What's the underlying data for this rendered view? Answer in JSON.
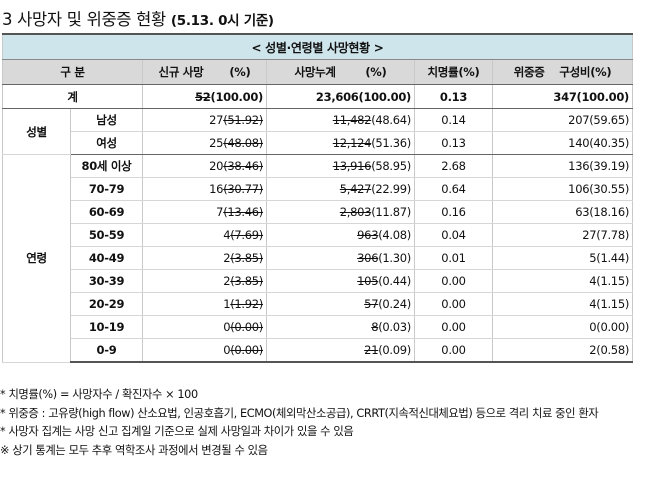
{
  "title": {
    "num": "3",
    "main": "사망자 및 위중증 현황",
    "sub": "(5.13. 0시 기준)"
  },
  "caption": "< 성별·연령별 사망현황 >",
  "headers": {
    "group": "구 분",
    "new": "신규 사망",
    "pct": "(%)",
    "cum": "사망누계",
    "cum_pct": "(%)",
    "cfr": "치명률(%)",
    "sev": "위중증",
    "sev_pct": "구성비(%)"
  },
  "total": {
    "label": "계",
    "new_old": "52",
    "new_new": "(100.00)",
    "cum_val": "23,606(100.00)",
    "cfr": "0.13",
    "sev": "347(100.00)"
  },
  "sex": {
    "label": "성별",
    "rows": [
      {
        "label": "남성",
        "new_a": "27",
        "new_b": "(51.92)",
        "cum_a": "11,482",
        "cum_b": "(48.64)",
        "cfr": "0.14",
        "sev": "207(59.65)"
      },
      {
        "label": "여성",
        "new_a": "25",
        "new_b": "(48.08)",
        "cum_a": "12,124",
        "cum_b": "(51.36)",
        "cfr": "0.13",
        "sev": "140(40.35)"
      }
    ]
  },
  "age": {
    "label": "연령",
    "rows": [
      {
        "label": "80세 이상",
        "new_a": "20",
        "new_b": "(38.46)",
        "cum_a": "13,916",
        "cum_b": "(58.95)",
        "cfr": "2.68",
        "sev": "136(39.19)"
      },
      {
        "label": "70-79",
        "new_a": "16",
        "new_b": "(30.77)",
        "cum_a": "5,427",
        "cum_b": "(22.99)",
        "cfr": "0.64",
        "sev": "106(30.55)"
      },
      {
        "label": "60-69",
        "new_a": "7",
        "new_b": "(13.46)",
        "cum_a": "2,803",
        "cum_b": "(11.87)",
        "cfr": "0.16",
        "sev": "63(18.16)"
      },
      {
        "label": "50-59",
        "new_a": "4",
        "new_b": "(7.69)",
        "cum_a": "963",
        "cum_b": "(4.08)",
        "cfr": "0.04",
        "sev": "27(7.78)"
      },
      {
        "label": "40-49",
        "new_a": "2",
        "new_b": "(3.85)",
        "cum_a": "306",
        "cum_b": "(1.30)",
        "cfr": "0.01",
        "sev": "5(1.44)"
      },
      {
        "label": "30-39",
        "new_a": "2",
        "new_b": "(3.85)",
        "cum_a": "105",
        "cum_b": "(0.44)",
        "cfr": "0.00",
        "sev": "4(1.15)"
      },
      {
        "label": "20-29",
        "new_a": "1",
        "new_b": "(1.92)",
        "cum_a": "57",
        "cum_b": "(0.24)",
        "cfr": "0.00",
        "sev": "4(1.15)"
      },
      {
        "label": "10-19",
        "new_a": "0",
        "new_b": "(0.00)",
        "cum_a": "8",
        "cum_b": "(0.03)",
        "cfr": "0.00",
        "sev": "0(0.00)"
      },
      {
        "label": "0-9",
        "new_a": "0",
        "new_b": "(0.00)",
        "cum_a": "21",
        "cum_b": "(0.09)",
        "cfr": "0.00",
        "sev": "2(0.58)"
      }
    ]
  },
  "notes": [
    "* 치명률(%) = 사망자수 / 확진자수 × 100",
    "* 위중증 : 고유량(high flow) 산소요법, 인공호흡기, ECMO(체외막산소공급), CRRT(지속적신대체요법) 등으로 격리 치료 중인 환자",
    "* 사망자 집계는 사망 신고 집계일 기준으로 실제 사망일과 차이가 있을 수 있음",
    "※ 상기 통계는 모두 추후 역학조사 과정에서 변경될 수 있음"
  ]
}
